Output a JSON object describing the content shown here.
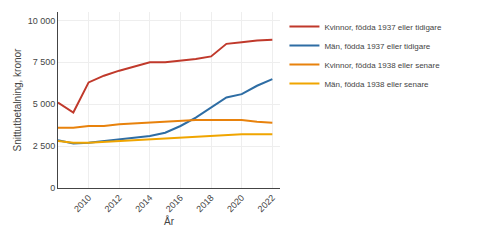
{
  "chart_data": {
    "type": "line",
    "x": [
      2008,
      2009,
      2010,
      2011,
      2012,
      2013,
      2014,
      2015,
      2016,
      2017,
      2018,
      2019,
      2020,
      2021,
      2022
    ],
    "series": [
      {
        "name": "Kvinnor, födda 1937 eller tidigare",
        "color": "#c0392b",
        "values": [
          5100,
          4500,
          6300,
          6700,
          7000,
          7250,
          7500,
          7500,
          7600,
          7700,
          7850,
          8600,
          8700,
          8800,
          8850
        ]
      },
      {
        "name": "Män, födda 1937 eller tidigare",
        "color": "#2e6da4",
        "values": [
          2850,
          2650,
          2700,
          2800,
          2900,
          3000,
          3100,
          3300,
          3700,
          4200,
          4800,
          5400,
          5600,
          6100,
          6500
        ]
      },
      {
        "name": "Kvinnor, födda 1938 eller senare",
        "color": "#e8820c",
        "values": [
          3600,
          3600,
          3700,
          3700,
          3800,
          3850,
          3900,
          3950,
          4000,
          4050,
          4050,
          4050,
          4050,
          3950,
          3900
        ]
      },
      {
        "name": "Män, födda 1938 eller senare",
        "color": "#f0a500",
        "values": [
          2800,
          2700,
          2700,
          2750,
          2800,
          2850,
          2900,
          2950,
          3000,
          3050,
          3100,
          3150,
          3200,
          3200,
          3200
        ]
      }
    ],
    "xlabel": "År",
    "ylabel": "Snittutbetalning, kronor",
    "xlim": [
      2008,
      2022.5
    ],
    "ylim": [
      0,
      10500
    ],
    "xticks": [
      2010,
      2012,
      2014,
      2016,
      2018,
      2020,
      2022
    ],
    "yticks": [
      0,
      {
        "value": 2500,
        "label": "2 500"
      },
      {
        "value": 5000,
        "label": "5 000"
      },
      {
        "value": 7500,
        "label": "7 500"
      },
      {
        "value": 10000,
        "label": "10 000"
      }
    ],
    "grid": true,
    "legend": "right"
  }
}
